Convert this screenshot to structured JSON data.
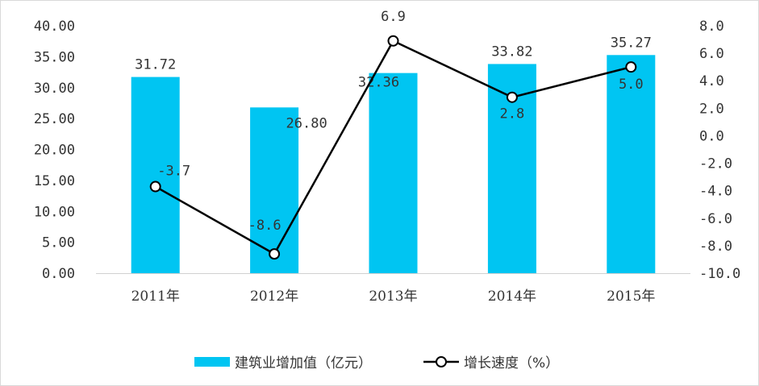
{
  "chart_data": {
    "type": "bar+line",
    "categories": [
      "2011年",
      "2012年",
      "2013年",
      "2014年",
      "2015年"
    ],
    "series": [
      {
        "name": "建筑业增加值（亿元）",
        "type": "bar",
        "axis": "left",
        "color": "#00c5f2",
        "values": [
          31.72,
          26.8,
          32.36,
          33.82,
          35.27
        ],
        "labels": [
          "31.72",
          "26.80",
          "32.36",
          "33.82",
          "35.27"
        ]
      },
      {
        "name": "增长速度（%）",
        "type": "line",
        "axis": "right",
        "color": "#000000",
        "marker": "open-circle",
        "values": [
          -3.7,
          -8.6,
          6.9,
          2.8,
          5.0
        ],
        "labels": [
          "-3.7",
          "-8.6",
          "6.9",
          "2.8",
          "5.0"
        ]
      }
    ],
    "y_left": {
      "ylim": [
        0,
        40
      ],
      "ticks": [
        "0.00",
        "5.00",
        "10.00",
        "15.00",
        "20.00",
        "25.00",
        "30.00",
        "35.00",
        "40.00"
      ]
    },
    "y_right": {
      "ylim": [
        -10,
        8
      ],
      "ticks": [
        "-10.0",
        "-8.0",
        "-6.0",
        "-4.0",
        "-2.0",
        "0.0",
        "2.0",
        "4.0",
        "6.0",
        "8.0"
      ]
    },
    "grid": false,
    "legend": "bottom-center"
  }
}
